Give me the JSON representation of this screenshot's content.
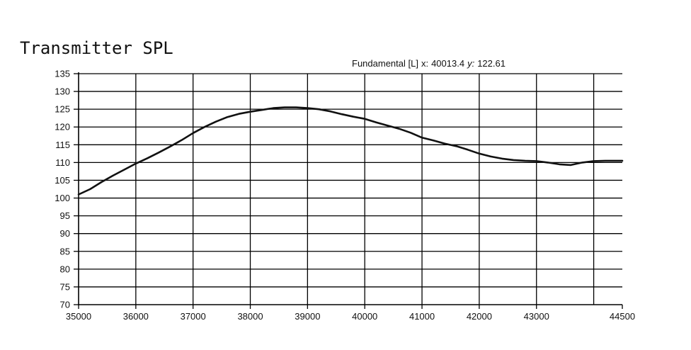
{
  "chart_data": {
    "type": "line",
    "title": "Transmitter SPL",
    "readout": {
      "series_label": "Fundamental [L]",
      "x_label": "x:",
      "x_value": "40013.4",
      "y_label": "y:",
      "y_value": "122.61"
    },
    "xlim": [
      35000,
      44500
    ],
    "ylim": [
      70,
      135
    ],
    "x_ticks": [
      35000,
      36000,
      37000,
      38000,
      39000,
      40000,
      41000,
      42000,
      43000,
      44500
    ],
    "x_tick_labels": [
      "35000",
      "36000",
      "37000",
      "38000",
      "39000",
      "40000",
      "41000",
      "42000",
      "43000",
      "44500"
    ],
    "x_gridlines": [
      36000,
      37000,
      38000,
      39000,
      40000,
      41000,
      42000,
      43000,
      44000
    ],
    "y_ticks": [
      70,
      75,
      80,
      85,
      90,
      95,
      100,
      105,
      110,
      115,
      120,
      125,
      130,
      135
    ],
    "y_tick_labels": [
      "70",
      "75",
      "80",
      "85",
      "90",
      "95",
      "100",
      "105",
      "110",
      "115",
      "120",
      "125",
      "130",
      "135"
    ],
    "grid": true,
    "series": [
      {
        "x": [
          35000,
          35200,
          35400,
          35600,
          35800,
          36000,
          36200,
          36400,
          36600,
          36800,
          37000,
          37200,
          37400,
          37600,
          37800,
          38000,
          38200,
          38400,
          38600,
          38800,
          39000,
          39200,
          39400,
          39600,
          39800,
          40000,
          40200,
          40400,
          40600,
          40800,
          41000,
          41200,
          41400,
          41600,
          41800,
          42000,
          42200,
          42400,
          42600,
          42800,
          43000,
          43200,
          43400,
          43600,
          43800,
          44000,
          44200,
          44500
        ],
        "y": [
          101,
          102.5,
          104.5,
          106.3,
          108,
          109.7,
          111.2,
          112.8,
          114.5,
          116.3,
          118.3,
          120,
          121.5,
          122.8,
          123.7,
          124.3,
          124.8,
          125.3,
          125.5,
          125.5,
          125.3,
          125,
          124.4,
          123.6,
          122.9,
          122.3,
          121.3,
          120.4,
          119.5,
          118.4,
          117,
          116.2,
          115.3,
          114.6,
          113.6,
          112.5,
          111.7,
          111.1,
          110.7,
          110.5,
          110.4,
          110,
          109.5,
          109.3,
          110,
          110.4,
          110.5,
          110.5
        ]
      }
    ]
  }
}
